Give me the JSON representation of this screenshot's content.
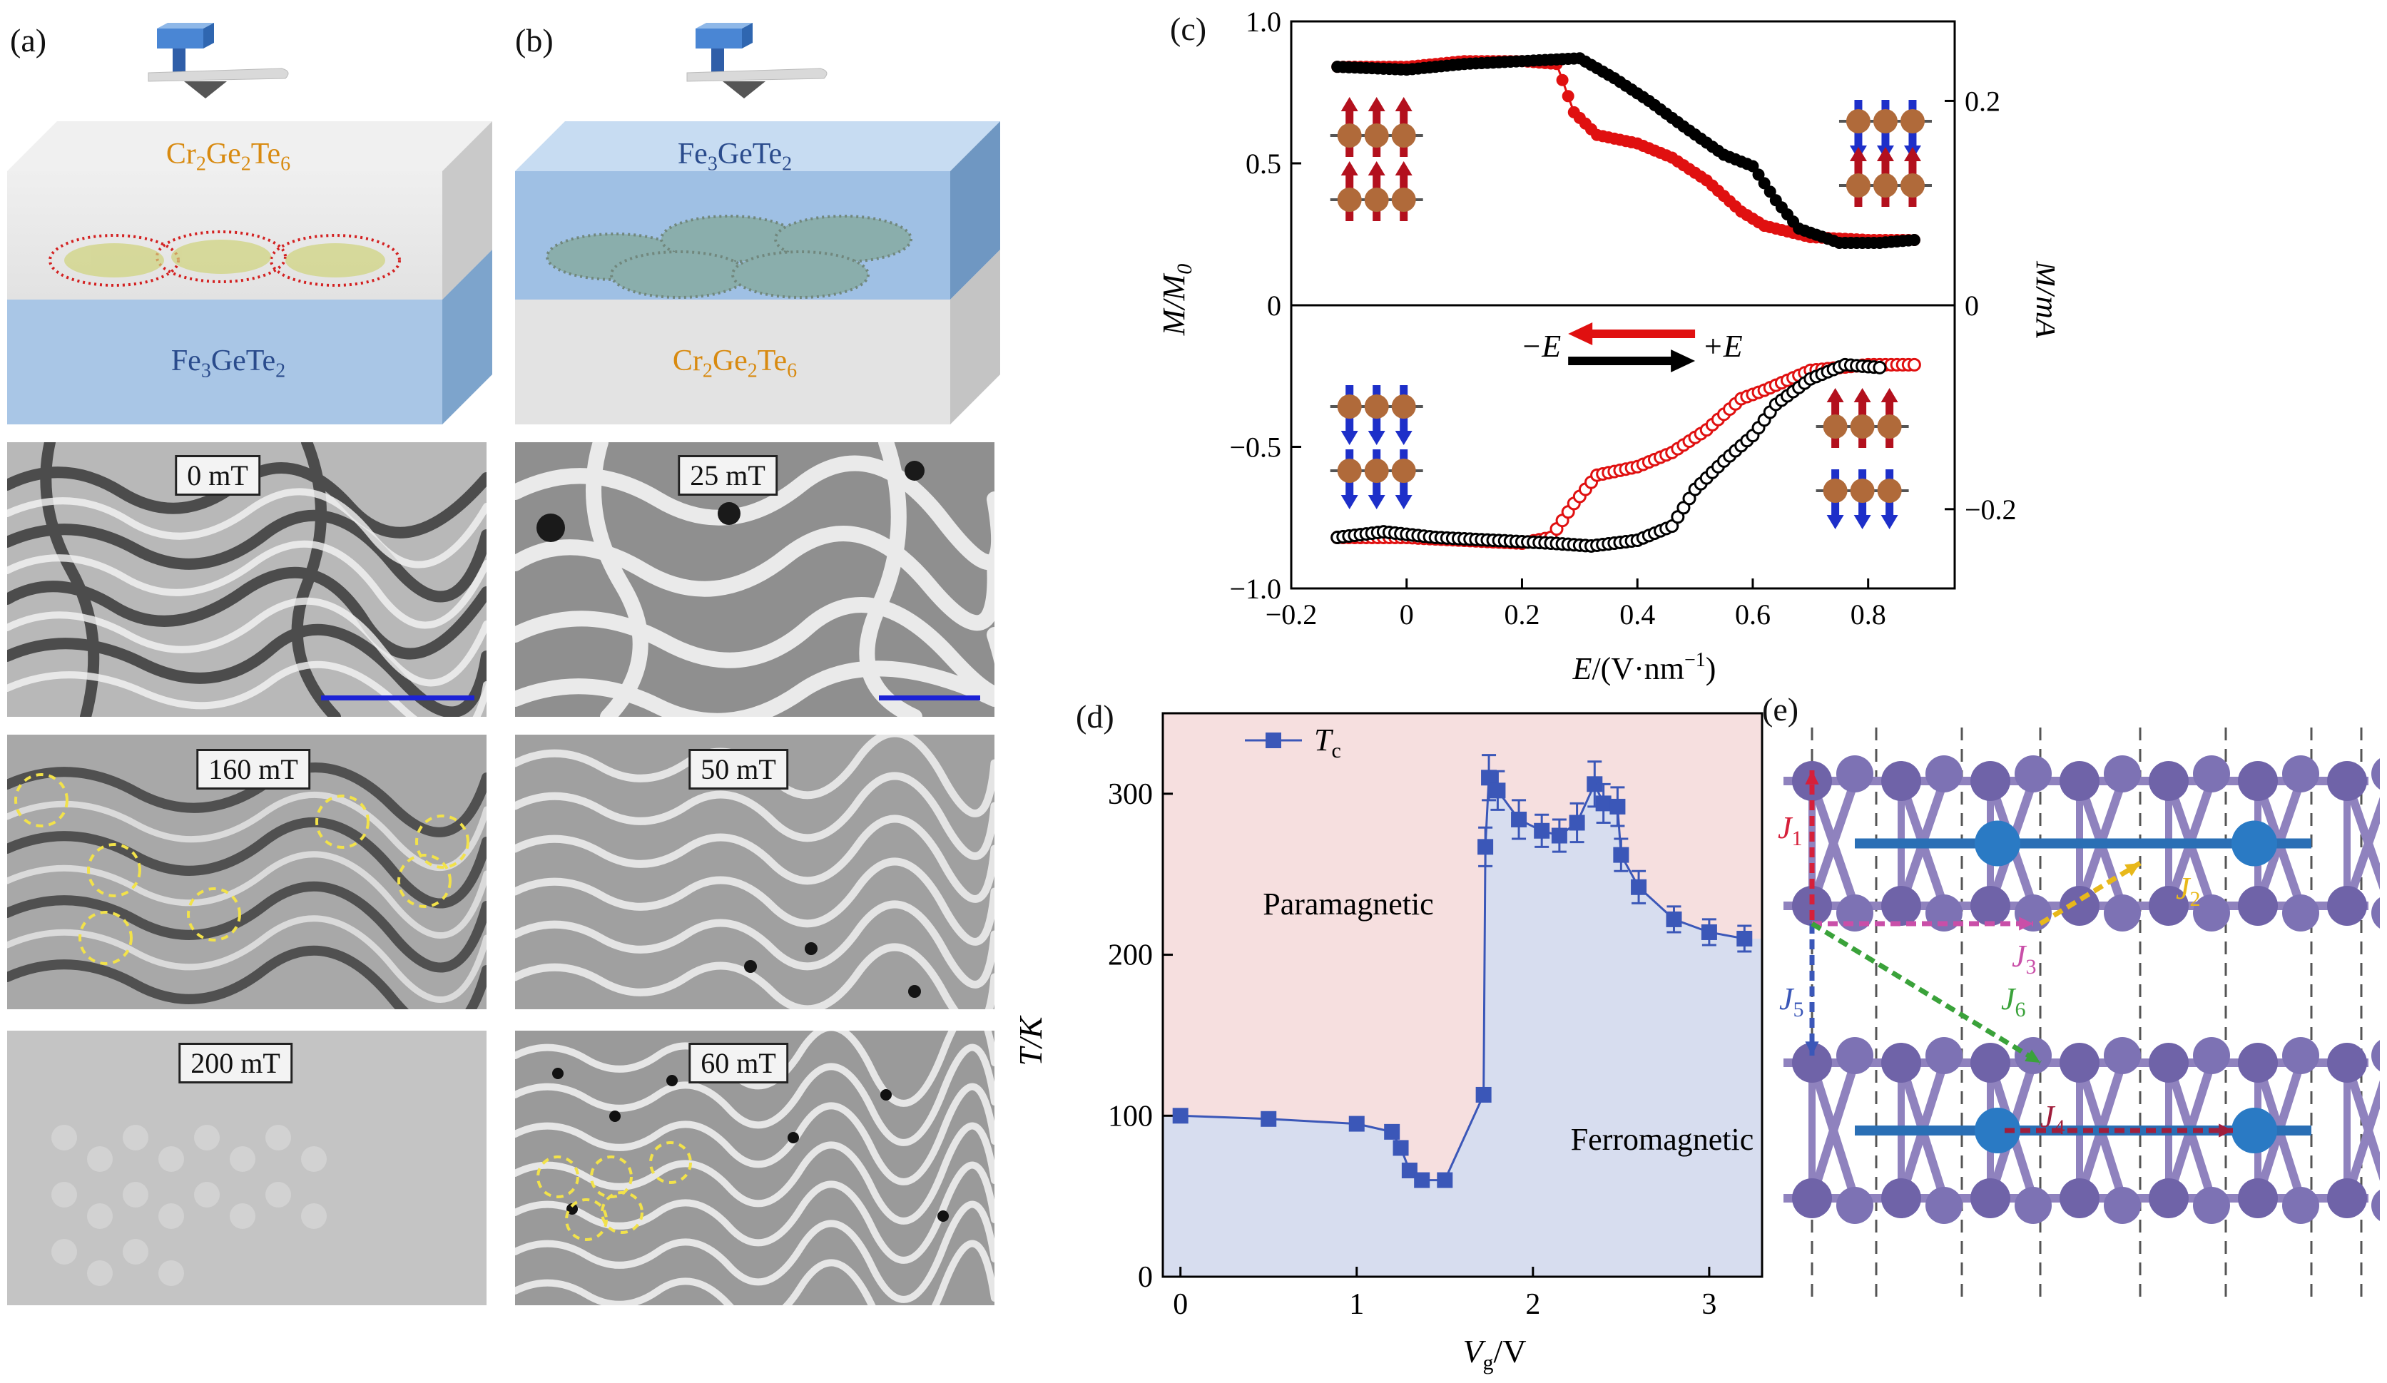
{
  "panels": {
    "a": {
      "letter": "(a)",
      "top_layer": {
        "text": "Cr",
        "s1": "2",
        "m1": "Ge",
        "s2": "2",
        "m2": "Te",
        "s3": "6"
      },
      "bottom_layer": {
        "text": "Fe",
        "s1": "3",
        "m1": "GeTe",
        "s2": "2"
      },
      "fields": [
        "0 mT",
        "160 mT",
        "200 mT"
      ]
    },
    "b": {
      "letter": "(b)",
      "top_layer": {
        "text": "Fe",
        "s1": "3",
        "m1": "GeTe",
        "s2": "2"
      },
      "bottom_layer": {
        "text": "Cr",
        "s1": "2",
        "m1": "Ge",
        "s2": "2",
        "m2": "Te",
        "s3": "6"
      },
      "fields": [
        "25 mT",
        "50 mT",
        "60 mT"
      ]
    },
    "c": {
      "letter": "(c)",
      "ylabel_left": "M/M",
      "ylabel_left_sub": "0",
      "ylabel_right": "M/mA",
      "xlabel": "E/(V·nm",
      "xlabel_sup": "−1",
      "xlabel_end": ")",
      "legend_minus": "−E",
      "legend_plus": "+E"
    },
    "d": {
      "letter": "(d)",
      "legend": "T",
      "legend_sub": "c",
      "region_top": "Paramagnetic",
      "region_bottom": "Ferromagnetic",
      "ylabel": "T/K",
      "xlabel": "V",
      "xlabel_sub": "g",
      "xlabel_end": "/V"
    },
    "e": {
      "letter": "(e)",
      "couplings": [
        {
          "label": "J",
          "sub": "1",
          "color": "#d6203a"
        },
        {
          "label": "J",
          "sub": "2",
          "color": "#e8b81a"
        },
        {
          "label": "J",
          "sub": "3",
          "color": "#c94fa8"
        },
        {
          "label": "J",
          "sub": "4",
          "color": "#a01e3c"
        },
        {
          "label": "J",
          "sub": "5",
          "color": "#3b57b8"
        },
        {
          "label": "J",
          "sub": "6",
          "color": "#3aa23a"
        }
      ]
    }
  },
  "chart_data": [
    {
      "type": "line",
      "panel": "c-top",
      "xlim": [
        -0.2,
        0.95
      ],
      "ylim": [
        0,
        1.0
      ],
      "x_ticks": [
        "−0.2",
        "0",
        "0.2",
        "0.4",
        "0.6",
        "0.8"
      ],
      "y_ticks": [
        "0",
        "0.5",
        "1.0"
      ],
      "right_ticks": [
        "0",
        "0.2"
      ],
      "series": [
        {
          "color": "#e01010",
          "points": [
            [
              -0.12,
              0.84
            ],
            [
              0.0,
              0.84
            ],
            [
              0.1,
              0.86
            ],
            [
              0.2,
              0.86
            ],
            [
              0.26,
              0.85
            ],
            [
              0.29,
              0.68
            ],
            [
              0.33,
              0.6
            ],
            [
              0.4,
              0.57
            ],
            [
              0.46,
              0.52
            ],
            [
              0.52,
              0.44
            ],
            [
              0.58,
              0.33
            ],
            [
              0.62,
              0.28
            ],
            [
              0.7,
              0.24
            ],
            [
              0.8,
              0.23
            ],
            [
              0.88,
              0.23
            ]
          ]
        },
        {
          "color": "#000000",
          "points": [
            [
              -0.12,
              0.84
            ],
            [
              0.0,
              0.83
            ],
            [
              0.1,
              0.85
            ],
            [
              0.2,
              0.86
            ],
            [
              0.3,
              0.87
            ],
            [
              0.36,
              0.8
            ],
            [
              0.42,
              0.72
            ],
            [
              0.48,
              0.63
            ],
            [
              0.55,
              0.53
            ],
            [
              0.6,
              0.49
            ],
            [
              0.64,
              0.37
            ],
            [
              0.68,
              0.27
            ],
            [
              0.75,
              0.22
            ],
            [
              0.82,
              0.22
            ],
            [
              0.88,
              0.23
            ]
          ]
        }
      ]
    },
    {
      "type": "line",
      "panel": "c-bottom",
      "xlim": [
        -0.2,
        0.95
      ],
      "ylim": [
        -1.0,
        0
      ],
      "y_ticks": [
        "−0.5",
        "−1.0"
      ],
      "right_ticks": [
        "−0.2"
      ],
      "series": [
        {
          "color": "#e01010",
          "hollow": true,
          "points": [
            [
              -0.12,
              -0.82
            ],
            [
              0.0,
              -0.82
            ],
            [
              0.1,
              -0.83
            ],
            [
              0.2,
              -0.84
            ],
            [
              0.25,
              -0.82
            ],
            [
              0.29,
              -0.7
            ],
            [
              0.33,
              -0.6
            ],
            [
              0.4,
              -0.57
            ],
            [
              0.46,
              -0.52
            ],
            [
              0.52,
              -0.44
            ],
            [
              0.58,
              -0.33
            ],
            [
              0.62,
              -0.3
            ],
            [
              0.7,
              -0.23
            ],
            [
              0.8,
              -0.21
            ],
            [
              0.88,
              -0.21
            ]
          ]
        },
        {
          "color": "#000000",
          "hollow": true,
          "points": [
            [
              -0.12,
              -0.82
            ],
            [
              -0.04,
              -0.8
            ],
            [
              0.05,
              -0.82
            ],
            [
              0.15,
              -0.83
            ],
            [
              0.25,
              -0.84
            ],
            [
              0.32,
              -0.85
            ],
            [
              0.4,
              -0.83
            ],
            [
              0.46,
              -0.78
            ],
            [
              0.5,
              -0.65
            ],
            [
              0.55,
              -0.55
            ],
            [
              0.6,
              -0.46
            ],
            [
              0.64,
              -0.35
            ],
            [
              0.7,
              -0.26
            ],
            [
              0.76,
              -0.21
            ],
            [
              0.82,
              -0.22
            ]
          ]
        }
      ]
    },
    {
      "type": "line",
      "panel": "d",
      "xlim": [
        -0.1,
        3.3
      ],
      "ylim": [
        0,
        350
      ],
      "x_ticks": [
        "0",
        "1",
        "2",
        "3"
      ],
      "y_ticks": [
        "0",
        "100",
        "200",
        "300"
      ],
      "series": [
        {
          "name": "Tc",
          "color": "#3b57b8",
          "x": [
            0,
            0.5,
            1.0,
            1.2,
            1.25,
            1.3,
            1.37,
            1.5,
            1.72,
            1.73,
            1.75,
            1.8,
            1.92,
            2.05,
            2.15,
            2.25,
            2.35,
            2.4,
            2.48,
            2.5,
            2.6,
            2.8,
            3.0,
            3.2
          ],
          "y": [
            100,
            98,
            95,
            90,
            80,
            66,
            60,
            60,
            113,
            267,
            310,
            302,
            284,
            277,
            274,
            282,
            306,
            294,
            292,
            262,
            242,
            222,
            214,
            210
          ],
          "err": [
            0,
            0,
            0,
            0,
            0,
            0,
            0,
            0,
            0,
            12,
            14,
            12,
            12,
            10,
            10,
            12,
            14,
            12,
            12,
            10,
            10,
            8,
            8,
            8
          ]
        }
      ]
    }
  ]
}
